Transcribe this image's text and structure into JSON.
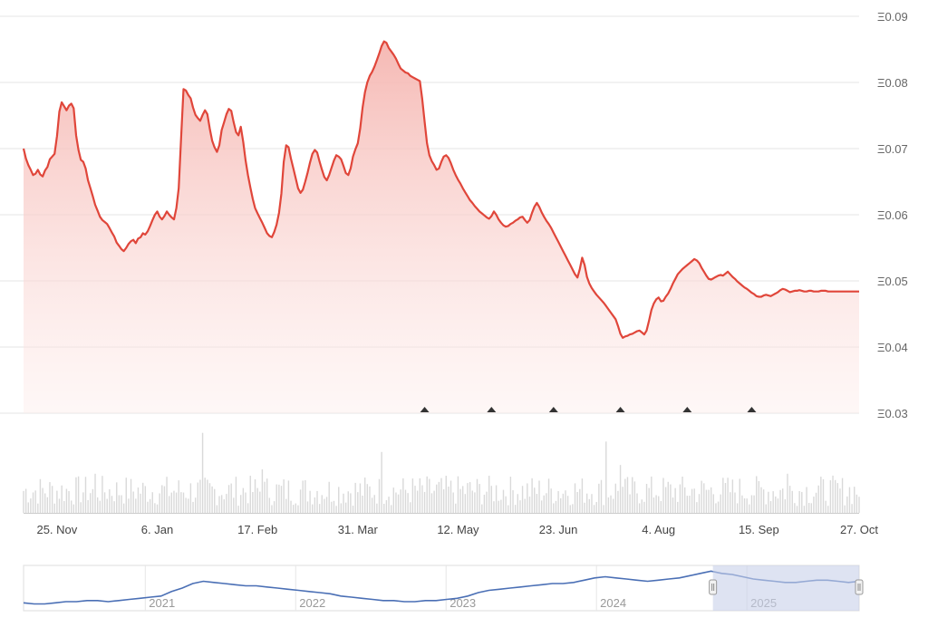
{
  "chart_data": {
    "type": "area",
    "title": "",
    "xlabel": "",
    "ylabel": "",
    "y_prefix": "Ξ",
    "ylim": [
      0.03,
      0.09
    ],
    "y_ticks": [
      "Ξ0.09",
      "Ξ0.08",
      "Ξ0.07",
      "Ξ0.06",
      "Ξ0.05",
      "Ξ0.04",
      "Ξ0.03"
    ],
    "y_tick_values": [
      0.09,
      0.08,
      0.07,
      0.06,
      0.05,
      0.04,
      0.03
    ],
    "x_ticks": [
      "25. Nov",
      "6. Jan",
      "17. Feb",
      "31. Mar",
      "12. May",
      "23. Jun",
      "4. Aug",
      "15. Sep",
      "27. Oct"
    ],
    "x_tick_index": [
      14,
      56,
      98,
      140,
      182,
      224,
      266,
      308,
      350
    ],
    "grid": true,
    "legend": "none",
    "colors": {
      "line": "#e0463a",
      "area_top": "#f7c6c2",
      "volume": "#d9d9d9",
      "navigator": "#4a6fb5",
      "navigator_mask": "#c8d0ea"
    },
    "series": [
      {
        "values": [
          0.07,
          0.0685,
          0.0675,
          0.0668,
          0.066,
          0.0662,
          0.0668,
          0.0661,
          0.0658,
          0.0667,
          0.0672,
          0.0684,
          0.0688,
          0.0692,
          0.0719,
          0.0756,
          0.077,
          0.0764,
          0.0758,
          0.0765,
          0.0768,
          0.0761,
          0.072,
          0.0698,
          0.0683,
          0.068,
          0.067,
          0.0652,
          0.064,
          0.0628,
          0.0615,
          0.0606,
          0.0597,
          0.0592,
          0.0589,
          0.0586,
          0.058,
          0.0573,
          0.0567,
          0.0558,
          0.0553,
          0.0548,
          0.0545,
          0.055,
          0.0556,
          0.056,
          0.0562,
          0.0557,
          0.0564,
          0.0566,
          0.0572,
          0.057,
          0.0575,
          0.0583,
          0.0592,
          0.06,
          0.0605,
          0.0597,
          0.0593,
          0.0598,
          0.0605,
          0.06,
          0.0596,
          0.0593,
          0.061,
          0.064,
          0.0718,
          0.079,
          0.0788,
          0.0781,
          0.0776,
          0.0762,
          0.0751,
          0.0746,
          0.0742,
          0.0751,
          0.0758,
          0.0752,
          0.073,
          0.0712,
          0.0702,
          0.0695,
          0.0705,
          0.0728,
          0.074,
          0.0752,
          0.076,
          0.0757,
          0.074,
          0.0725,
          0.072,
          0.0733,
          0.071,
          0.0682,
          0.066,
          0.0641,
          0.0624,
          0.061,
          0.0602,
          0.0595,
          0.0588,
          0.058,
          0.0572,
          0.0568,
          0.0566,
          0.0574,
          0.0585,
          0.0603,
          0.0632,
          0.068,
          0.0705,
          0.0702,
          0.0685,
          0.067,
          0.0655,
          0.064,
          0.0633,
          0.0638,
          0.065,
          0.0664,
          0.0679,
          0.0692,
          0.0698,
          0.0694,
          0.068,
          0.0668,
          0.0657,
          0.0652,
          0.066,
          0.0671,
          0.0682,
          0.069,
          0.0688,
          0.0684,
          0.0674,
          0.0663,
          0.066,
          0.067,
          0.0688,
          0.0699,
          0.0708,
          0.073,
          0.0762,
          0.0785,
          0.08,
          0.081,
          0.0816,
          0.0824,
          0.0834,
          0.0844,
          0.0855,
          0.0862,
          0.086,
          0.0852,
          0.0847,
          0.0842,
          0.0836,
          0.0828,
          0.0821,
          0.0818,
          0.0815,
          0.0814,
          0.081,
          0.0808,
          0.0806,
          0.0804,
          0.0802,
          0.0775,
          0.074,
          0.0708,
          0.069,
          0.0681,
          0.0675,
          0.0668,
          0.067,
          0.068,
          0.0688,
          0.069,
          0.0686,
          0.0678,
          0.0668,
          0.066,
          0.0653,
          0.0647,
          0.064,
          0.0634,
          0.0628,
          0.0622,
          0.0618,
          0.0613,
          0.0609,
          0.0605,
          0.0602,
          0.0599,
          0.0596,
          0.0594,
          0.0598,
          0.0605,
          0.06,
          0.0593,
          0.0588,
          0.0584,
          0.0582,
          0.0583,
          0.0586,
          0.0588,
          0.0591,
          0.0593,
          0.0596,
          0.0597,
          0.0592,
          0.0588,
          0.0592,
          0.0603,
          0.0612,
          0.0618,
          0.0612,
          0.0604,
          0.0597,
          0.0591,
          0.0586,
          0.058,
          0.0573,
          0.0566,
          0.0559,
          0.0552,
          0.0545,
          0.0538,
          0.0531,
          0.0524,
          0.0517,
          0.051,
          0.0505,
          0.0518,
          0.0535,
          0.0524,
          0.0506,
          0.0496,
          0.0489,
          0.0484,
          0.0479,
          0.0475,
          0.0471,
          0.0467,
          0.0462,
          0.0457,
          0.0452,
          0.0447,
          0.0442,
          0.0432,
          0.042,
          0.0414,
          0.0416,
          0.0417,
          0.0419,
          0.042,
          0.0422,
          0.0424,
          0.0425,
          0.0422,
          0.0419,
          0.0425,
          0.044,
          0.0456,
          0.0466,
          0.0472,
          0.0475,
          0.0469,
          0.047,
          0.0476,
          0.0481,
          0.0488,
          0.0496,
          0.0503,
          0.051,
          0.0514,
          0.0518,
          0.0521,
          0.0524,
          0.0527,
          0.053,
          0.0533,
          0.0531,
          0.0527,
          0.052,
          0.0514,
          0.0508,
          0.0503,
          0.0502,
          0.0504,
          0.0506,
          0.0508,
          0.0509,
          0.0508,
          0.0511,
          0.0514,
          0.051,
          0.0506,
          0.0503,
          0.0499,
          0.0496,
          0.0493,
          0.049,
          0.0488,
          0.0485,
          0.0482,
          0.048,
          0.0477,
          0.0476,
          0.0476,
          0.0478,
          0.0479,
          0.0478,
          0.0477,
          0.0479,
          0.0481,
          0.0483,
          0.0486,
          0.0488,
          0.0487,
          0.0485,
          0.0483,
          0.0484,
          0.0485,
          0.0485,
          0.0486,
          0.0485,
          0.0484,
          0.0484,
          0.0485,
          0.0485,
          0.0484,
          0.0484,
          0.0484,
          0.0485,
          0.0485,
          0.0485,
          0.0484,
          0.0484,
          0.0484,
          0.0484,
          0.0484,
          0.0484,
          0.0484,
          0.0484,
          0.0484,
          0.0484,
          0.0484,
          0.0484,
          0.0484,
          0.0484
        ]
      }
    ],
    "event_markers_index": [
      168,
      196,
      222,
      250,
      278,
      305
    ],
    "navigator": {
      "labels": [
        "2021",
        "2022",
        "2023",
        "2024",
        "2025"
      ],
      "label_year_pos": [
        0.15,
        0.33,
        0.51,
        0.69,
        0.87
      ],
      "values": [
        0.032,
        0.031,
        0.031,
        0.032,
        0.033,
        0.033,
        0.034,
        0.034,
        0.033,
        0.034,
        0.035,
        0.036,
        0.037,
        0.038,
        0.042,
        0.045,
        0.049,
        0.051,
        0.05,
        0.049,
        0.048,
        0.047,
        0.047,
        0.046,
        0.045,
        0.044,
        0.043,
        0.042,
        0.041,
        0.04,
        0.038,
        0.037,
        0.036,
        0.035,
        0.034,
        0.034,
        0.033,
        0.033,
        0.034,
        0.034,
        0.035,
        0.036,
        0.038,
        0.041,
        0.043,
        0.044,
        0.045,
        0.046,
        0.047,
        0.048,
        0.049,
        0.049,
        0.05,
        0.052,
        0.054,
        0.055,
        0.054,
        0.053,
        0.052,
        0.051,
        0.052,
        0.053,
        0.054,
        0.056,
        0.058,
        0.06,
        0.058,
        0.057,
        0.055,
        0.053,
        0.052,
        0.051,
        0.05,
        0.05,
        0.051,
        0.052,
        0.052,
        0.051,
        0.05,
        0.051
      ],
      "selected_range": [
        0.825,
        1.0
      ]
    }
  }
}
